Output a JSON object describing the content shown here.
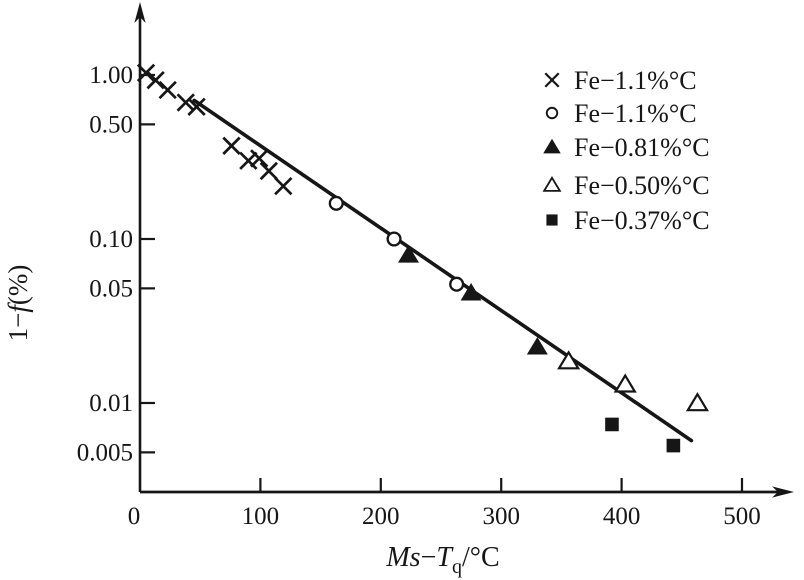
{
  "figure": {
    "background": "#ffffff",
    "ink": "#161616"
  },
  "chart_data": {
    "type": "scatter",
    "title": "",
    "x_axis": {
      "label_plain": "Ms−Tq/°C",
      "label_parts": [
        {
          "text": "Ms",
          "italic": true
        },
        {
          "text": "−",
          "italic": false
        },
        {
          "text": "T",
          "italic": true
        },
        {
          "text": "q",
          "sub": true
        },
        {
          "text": "/°C",
          "italic": false
        }
      ],
      "scale": "linear",
      "range": [
        0,
        540
      ],
      "ticks": [
        {
          "label": "0",
          "value": 0
        },
        {
          "label": "100",
          "value": 100
        },
        {
          "label": "200",
          "value": 200
        },
        {
          "label": "300",
          "value": 300
        },
        {
          "label": "400",
          "value": 400
        },
        {
          "label": "500",
          "value": 500
        }
      ]
    },
    "y_axis": {
      "label_plain": "1−f(%)",
      "label_parts": [
        {
          "text": "1−",
          "italic": false
        },
        {
          "text": "f",
          "italic": true
        },
        {
          "text": "(%)",
          "italic": false
        }
      ],
      "scale": "log",
      "range": [
        0.003,
        1.6
      ],
      "ticks": [
        {
          "label": "1.00",
          "value": 1.0
        },
        {
          "label": "0.50",
          "value": 0.5
        },
        {
          "label": "0.10",
          "value": 0.1
        },
        {
          "label": "0.05",
          "value": 0.05
        },
        {
          "label": "0.01",
          "value": 0.01
        },
        {
          "label": "0.005",
          "value": 0.005
        }
      ]
    },
    "series": [
      {
        "name": "Fe−1.1%°C",
        "marker": "cross",
        "points": [
          [
            5,
            1.03
          ],
          [
            13,
            0.93
          ],
          [
            23,
            0.81
          ],
          [
            38,
            0.68
          ],
          [
            47,
            0.64
          ],
          [
            76,
            0.37
          ],
          [
            90,
            0.3
          ],
          [
            99,
            0.31
          ],
          [
            107,
            0.26
          ],
          [
            119,
            0.21
          ]
        ]
      },
      {
        "name": "Fe−1.1%°C",
        "marker": "circle-open",
        "points": [
          [
            163,
            0.165
          ],
          [
            211,
            0.1
          ],
          [
            263,
            0.053
          ]
        ]
      },
      {
        "name": "Fe−0.81%°C",
        "marker": "triangle-filled",
        "points": [
          [
            223,
            0.08
          ],
          [
            275,
            0.047
          ],
          [
            330,
            0.022
          ]
        ]
      },
      {
        "name": "Fe−0.50%°C",
        "marker": "triangle-open",
        "points": [
          [
            356,
            0.018
          ],
          [
            403,
            0.013
          ],
          [
            463,
            0.01
          ]
        ]
      },
      {
        "name": "Fe−0.37%°C",
        "marker": "square-filled",
        "points": [
          [
            392,
            0.0074
          ],
          [
            443,
            0.0055
          ]
        ]
      }
    ],
    "fit_line": {
      "x1": 45,
      "y1": 0.7,
      "x2": 458,
      "y2": 0.0059
    },
    "legend": {
      "position": "upper-right",
      "items": [
        {
          "marker": "cross",
          "label": "Fe−1.1%°C"
        },
        {
          "marker": "circle-open",
          "label": "Fe−1.1%°C"
        },
        {
          "marker": "triangle-filled",
          "label": "Fe−0.81%°C"
        },
        {
          "marker": "triangle-open",
          "label": "Fe−0.50%°C"
        },
        {
          "marker": "square-filled",
          "label": "Fe−0.37%°C"
        }
      ]
    },
    "grid": false
  }
}
